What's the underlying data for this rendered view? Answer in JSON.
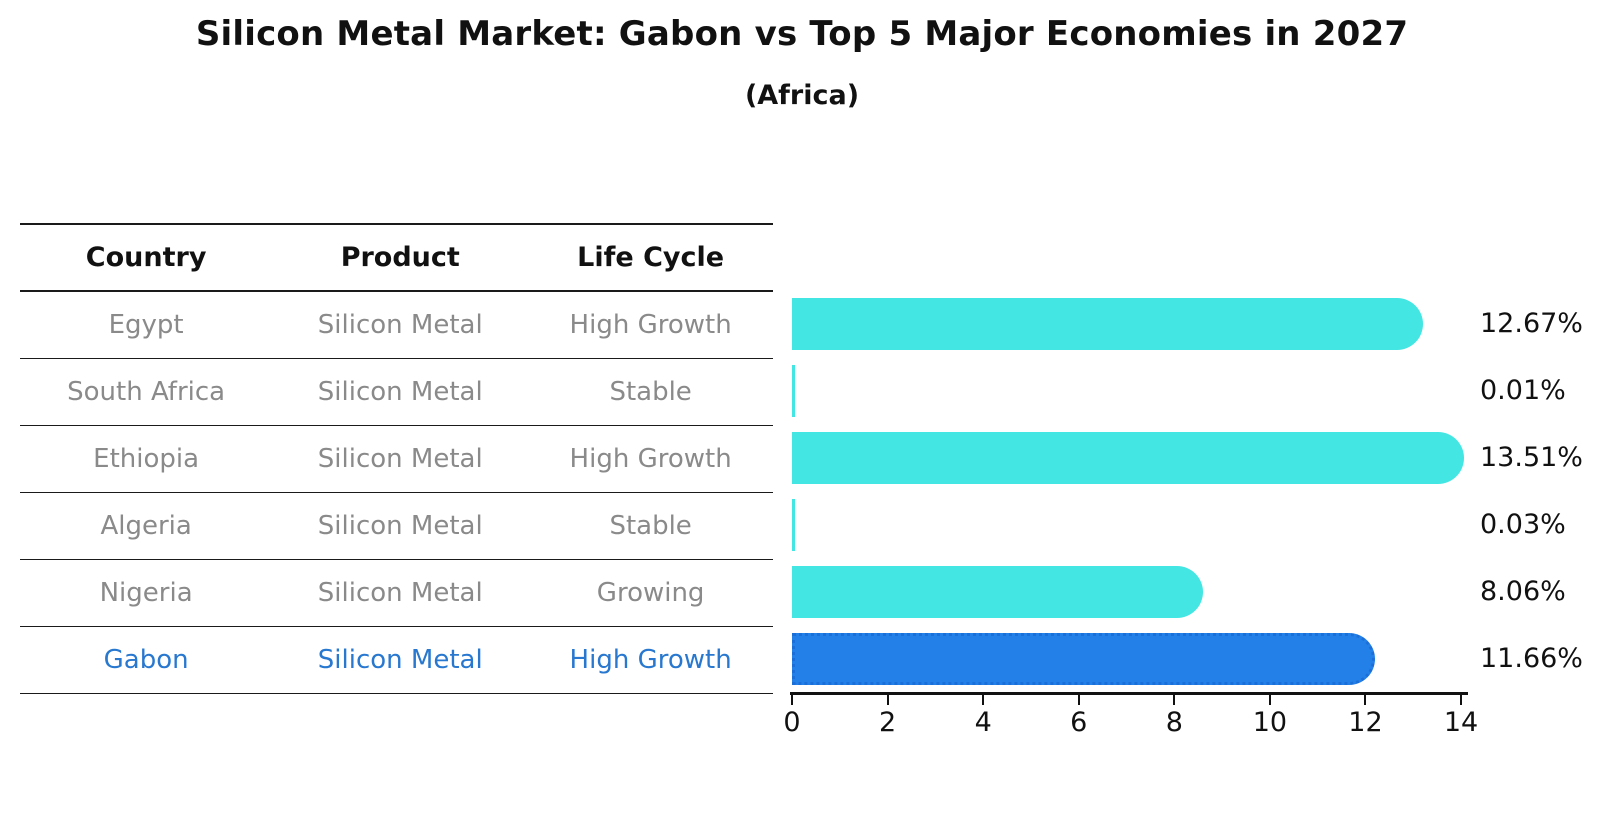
{
  "title": "Silicon Metal Market: Gabon vs Top 5 Major Economies in 2027",
  "subtitle": "(Africa)",
  "table": {
    "headers": [
      "Country",
      "Product",
      "Life Cycle"
    ],
    "text_color": "#8a8a8a",
    "header_color": "#111111",
    "highlight_text_color": "#2878d0",
    "rows": [
      {
        "country": "Egypt",
        "product": "Silicon Metal",
        "life_cycle": "High Growth",
        "highlighted": false
      },
      {
        "country": "South Africa",
        "product": "Silicon Metal",
        "life_cycle": "Stable",
        "highlighted": false
      },
      {
        "country": "Ethiopia",
        "product": "Silicon Metal",
        "life_cycle": "High Growth",
        "highlighted": false
      },
      {
        "country": "Algeria",
        "product": "Silicon Metal",
        "life_cycle": "Stable",
        "highlighted": false
      },
      {
        "country": "Nigeria",
        "product": "Silicon Metal",
        "life_cycle": "Growing",
        "highlighted": false
      },
      {
        "country": "Gabon",
        "product": "Silicon Metal",
        "life_cycle": "High Growth",
        "highlighted": true
      }
    ]
  },
  "chart_data": {
    "type": "bar",
    "orientation": "horizontal",
    "title": "Silicon Metal Market: Gabon vs Top 5 Major Economies in 2027",
    "subtitle": "(Africa)",
    "categories": [
      "Egypt",
      "South Africa",
      "Ethiopia",
      "Algeria",
      "Nigeria",
      "Gabon"
    ],
    "values": [
      12.67,
      0.01,
      13.51,
      0.03,
      8.06,
      11.66
    ],
    "value_labels": [
      "12.67%",
      "0.01%",
      "13.51%",
      "0.03%",
      "8.06%",
      "11.66%"
    ],
    "xlabel": "",
    "ylabel": "",
    "xlim": [
      0,
      14
    ],
    "x_ticks": [
      0,
      2,
      4,
      6,
      8,
      10,
      12,
      14
    ],
    "grid": false,
    "legend": false,
    "bar_color": "#43e6e2",
    "highlight_index": 5,
    "highlight_color": "#2380e8",
    "highlight_border_color": "#1b6fd9",
    "axis_color": "#111111"
  }
}
